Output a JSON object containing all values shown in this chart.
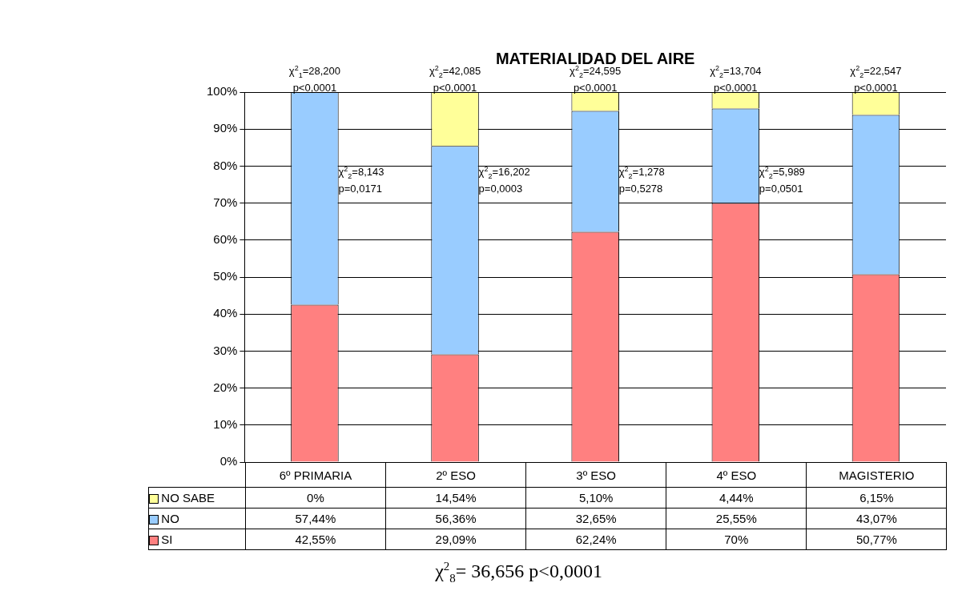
{
  "chart_data": {
    "type": "bar",
    "title": "MATERIALIDAD DEL AIRE",
    "categories": [
      "6º PRIMARIA",
      "2º ESO",
      "3º ESO",
      "4º ESO",
      "MAGISTERIO"
    ],
    "stacked": true,
    "series": [
      {
        "name": "SI",
        "color": "#ff8080",
        "values": [
          42.55,
          29.09,
          62.24,
          70,
          50.77
        ],
        "value_labels": [
          "42,55%",
          "29,09%",
          "62,24%",
          "70%",
          "50,77%"
        ]
      },
      {
        "name": "NO",
        "color": "#99ccff",
        "values": [
          57.44,
          56.36,
          32.65,
          25.55,
          43.07
        ],
        "value_labels": [
          "57,44%",
          "56,36%",
          "32,65%",
          "25,55%",
          "43,07%"
        ]
      },
      {
        "name": "NO SABE",
        "color": "#ffff99",
        "values": [
          0,
          14.54,
          5.1,
          4.44,
          6.15
        ],
        "value_labels": [
          "0%",
          "14,54%",
          "5,10%",
          "4,44%",
          "6,15%"
        ]
      }
    ],
    "ylim": [
      0,
      100
    ],
    "yticks": [
      {
        "value": 0,
        "label": "0%"
      },
      {
        "value": 10,
        "label": "10%"
      },
      {
        "value": 20,
        "label": "20%"
      },
      {
        "value": 30,
        "label": "30%"
      },
      {
        "value": 40,
        "label": "40%"
      },
      {
        "value": 50,
        "label": "50%"
      },
      {
        "value": 60,
        "label": "60%"
      },
      {
        "value": 70,
        "label": "70%"
      },
      {
        "value": 80,
        "label": "80%"
      },
      {
        "value": 90,
        "label": "90%"
      },
      {
        "value": 100,
        "label": "100%"
      }
    ],
    "grid": "y",
    "legend": "bottom left",
    "annotations": [
      "χ$^{2}$$_{1}$=28,200\np<0,0001",
      "χ$^{2}$$_{2}$=42,085\np<0,0001",
      "χ$^{2}$$_{2}$=24,595\np<0,0001",
      "χ$^{2}$$_{2}$=13,704\np<0,0001",
      "χ$^{2}$$_{2}$=22,547\np<0,0001",
      "χ$^{2}$$_{2}$=8,143\np=0,0171",
      "χ$^{2}$$_{2}$=16,202\np=0,0003",
      "χ$^{2}$$_{2}$=1,278\np=0,5278",
      "χ$^{2}$$_{2}$=5,989\np=0,0501",
      "χ$^{2}$$_{8}$= 36,656  p<0,0001"
    ]
  }
}
